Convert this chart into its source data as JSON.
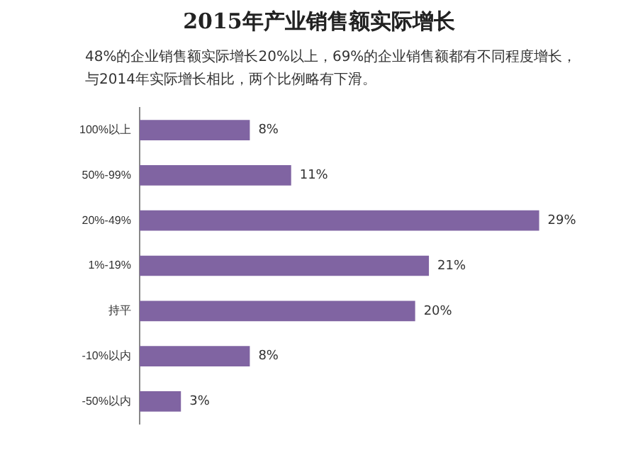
{
  "chart_data": {
    "type": "bar",
    "orientation": "horizontal",
    "title": "2015年产业销售额实际增长",
    "subtitle": "48%的企业销售额实际增长20%以上，69%的企业销售额都有不同程度增长，与2014年实际增长相比，两个比例略有下滑。",
    "categories": [
      "100%以上",
      "50%-99%",
      "20%-49%",
      "1%-19%",
      "持平",
      "-10%以内",
      "-50%以内"
    ],
    "values": [
      8,
      11,
      29,
      21,
      20,
      8,
      3
    ],
    "value_labels": [
      "8%",
      "11%",
      "29%",
      "21%",
      "20%",
      "8%",
      "3%"
    ],
    "color": "#8064a2"
  }
}
